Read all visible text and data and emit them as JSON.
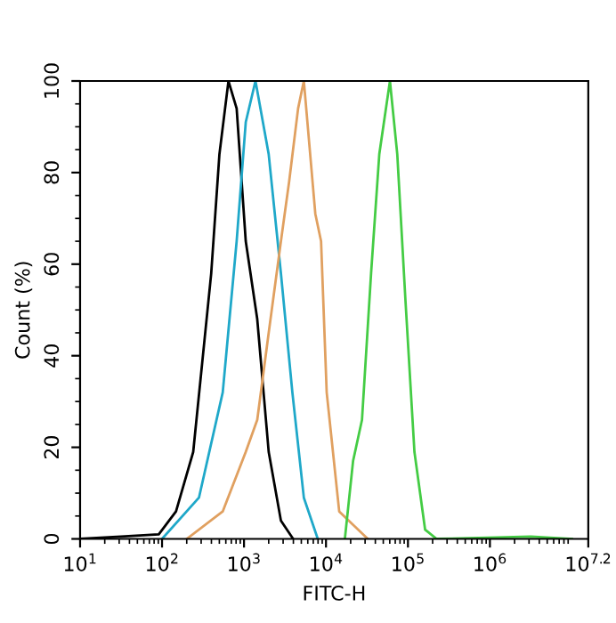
{
  "chart_data": {
    "type": "line",
    "xlabel": "FITC-H",
    "ylabel": "Count (%)",
    "log": "x",
    "grid": false,
    "marker": "none",
    "line_style": "solid",
    "xlim": [
      10,
      15848932
    ],
    "ylim": [
      0,
      100
    ],
    "xticks": [
      {
        "value": 10,
        "label": "10$^{1}$"
      },
      {
        "value": 100,
        "label": "10$^{2}$"
      },
      {
        "value": 1000,
        "label": "10$^{3}$"
      },
      {
        "value": 10000,
        "label": "10$^{4}$"
      },
      {
        "value": 100000,
        "label": "10$^{5}$"
      },
      {
        "value": 1000000,
        "label": "10$^{6}$"
      },
      {
        "value": 15848932,
        "label": "10$^{7.2}$"
      }
    ],
    "yticks": [
      0,
      20,
      40,
      60,
      80,
      100
    ],
    "series": [
      {
        "color": "#000000",
        "x": [
          10,
          31.6,
          91.2,
          148,
          240,
          398,
          501,
          646,
          813,
          1050,
          1450,
          2000,
          2820,
          3980
        ],
        "values": [
          0,
          0.5,
          1,
          6,
          19,
          58,
          84,
          100,
          94,
          65,
          48,
          19,
          4,
          0
        ]
      },
      {
        "color": "#1fa8c9",
        "x": [
          100,
          282,
          550,
          813,
          1050,
          1380,
          2000,
          2820,
          3890,
          5370,
          7940
        ],
        "values": [
          0,
          9,
          32,
          65,
          91,
          100,
          84,
          58,
          32,
          9,
          0
        ]
      },
      {
        "color": "#e0a060",
        "x": [
          200,
          550,
          1050,
          1450,
          2000,
          2820,
          3550,
          4570,
          5370,
          7410,
          8710,
          10200,
          14500,
          32400
        ],
        "values": [
          0,
          6,
          19,
          26,
          45,
          65,
          78,
          94,
          100,
          71,
          65,
          32,
          6,
          0
        ]
      },
      {
        "color": "#44cc44",
        "x": [
          17000,
          21400,
          27500,
          35500,
          44700,
          60300,
          74100,
          93300,
          120000,
          162000,
          224000,
          3160000,
          10000000
        ],
        "values": [
          0,
          17,
          26,
          58,
          84,
          100,
          84,
          52,
          19,
          2,
          0,
          0.5,
          0
        ]
      }
    ]
  }
}
